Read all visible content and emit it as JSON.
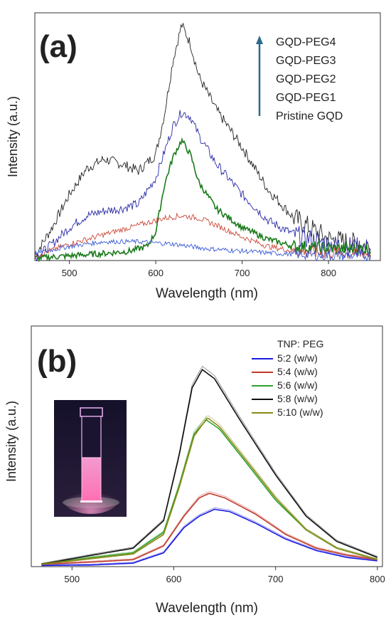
{
  "panel_a": {
    "label": "(a)",
    "legend_arrow_color": "#2b6a8a",
    "chart_data": {
      "type": "line",
      "title": "",
      "xlabel": "Wavelength (nm)",
      "ylabel": "Intensity (a.u.)",
      "xlim": [
        460,
        860
      ],
      "ylim": [
        0,
        1.05
      ],
      "xticks": [
        500,
        600,
        700,
        800
      ],
      "grid": false,
      "legend_placement": "top-right",
      "legend_entries": [
        "GQD-PEG4",
        "GQD-PEG3",
        "GQD-PEG2",
        "GQD-PEG1",
        "Pristine GQD"
      ],
      "series": [
        {
          "color": "#222222",
          "noise": 0.022,
          "x": [
            460,
            480,
            500,
            520,
            540,
            560,
            580,
            600,
            610,
            620,
            630,
            640,
            650,
            670,
            700,
            730,
            760,
            800,
            850
          ],
          "y": [
            0.02,
            0.14,
            0.28,
            0.39,
            0.43,
            0.41,
            0.38,
            0.45,
            0.62,
            0.85,
            1.0,
            0.92,
            0.78,
            0.64,
            0.48,
            0.3,
            0.18,
            0.09,
            0.06
          ]
        },
        {
          "color": "#2a2aa8",
          "noise": 0.02,
          "x": [
            460,
            480,
            500,
            520,
            540,
            560,
            580,
            600,
            610,
            620,
            630,
            640,
            650,
            670,
            700,
            730,
            760,
            800,
            850
          ],
          "y": [
            0.01,
            0.07,
            0.14,
            0.19,
            0.21,
            0.22,
            0.24,
            0.35,
            0.46,
            0.57,
            0.63,
            0.61,
            0.53,
            0.41,
            0.28,
            0.17,
            0.11,
            0.07,
            0.05
          ]
        },
        {
          "color": "#1b7a1b",
          "noise": 0.013,
          "x": [
            460,
            500,
            540,
            570,
            590,
            600,
            610,
            620,
            630,
            640,
            650,
            670,
            700,
            730,
            760,
            800,
            850
          ],
          "y": [
            0.01,
            0.02,
            0.03,
            0.04,
            0.06,
            0.12,
            0.32,
            0.44,
            0.51,
            0.45,
            0.33,
            0.22,
            0.14,
            0.09,
            0.06,
            0.05,
            0.05
          ]
        },
        {
          "color": "#cc4a3a",
          "noise": 0.012,
          "x": [
            460,
            500,
            540,
            580,
            610,
            630,
            650,
            670,
            700,
            730,
            760,
            800,
            850
          ],
          "y": [
            0.02,
            0.07,
            0.11,
            0.15,
            0.18,
            0.19,
            0.18,
            0.15,
            0.1,
            0.06,
            0.04,
            0.03,
            0.03
          ]
        },
        {
          "color": "#3a5ad8",
          "noise": 0.01,
          "x": [
            460,
            500,
            540,
            580,
            620,
            660,
            700,
            740,
            800,
            850
          ],
          "y": [
            0.03,
            0.06,
            0.08,
            0.08,
            0.07,
            0.05,
            0.04,
            0.03,
            0.02,
            0.02
          ]
        }
      ]
    }
  },
  "panel_b": {
    "label": "(b)",
    "chart_data": {
      "type": "line",
      "title": "",
      "xlabel": "Wavelength (nm)",
      "ylabel": "Intensity (a.u.)",
      "xlim": [
        460,
        805
      ],
      "ylim": [
        0,
        1.05
      ],
      "xticks": [
        500,
        600,
        700,
        800
      ],
      "grid": false,
      "legend_placement": "top-right",
      "legend_title": "TNP: PEG",
      "series": [
        {
          "name": "5:2 (w/w)",
          "color": "#1a1ae0",
          "peak": 640,
          "height": 0.25,
          "base_start": 0.005,
          "x": [
            470,
            520,
            560,
            590,
            610,
            625,
            640,
            655,
            680,
            710,
            740,
            770,
            800
          ],
          "y": [
            0.005,
            0.007,
            0.015,
            0.06,
            0.17,
            0.22,
            0.25,
            0.24,
            0.19,
            0.12,
            0.07,
            0.04,
            0.025
          ]
        },
        {
          "name": "5:4 (w/w)",
          "color": "#c0392b",
          "peak": 635,
          "height": 0.32,
          "x": [
            470,
            520,
            560,
            590,
            610,
            625,
            635,
            650,
            680,
            710,
            740,
            770,
            800
          ],
          "y": [
            0.01,
            0.02,
            0.03,
            0.09,
            0.22,
            0.3,
            0.32,
            0.3,
            0.23,
            0.14,
            0.08,
            0.05,
            0.03
          ]
        },
        {
          "name": "5:6 (w/w)",
          "color": "#2ea32e",
          "x": [
            470,
            520,
            560,
            590,
            605,
            620,
            632,
            645,
            670,
            700,
            730,
            760,
            800
          ],
          "y": [
            0.01,
            0.04,
            0.06,
            0.15,
            0.35,
            0.58,
            0.64,
            0.6,
            0.46,
            0.29,
            0.16,
            0.08,
            0.03
          ]
        },
        {
          "name": "5:8 (w/w)",
          "color": "#111111",
          "x": [
            470,
            520,
            560,
            590,
            605,
            618,
            628,
            640,
            665,
            700,
            730,
            760,
            800
          ],
          "y": [
            0.01,
            0.05,
            0.08,
            0.2,
            0.48,
            0.78,
            0.86,
            0.82,
            0.64,
            0.4,
            0.22,
            0.11,
            0.04
          ]
        },
        {
          "name": "5:10 (w/w)",
          "color": "#8a8a18",
          "x": [
            470,
            520,
            560,
            590,
            605,
            620,
            633,
            645,
            670,
            700,
            730,
            760,
            800
          ],
          "y": [
            0.01,
            0.035,
            0.055,
            0.14,
            0.34,
            0.57,
            0.65,
            0.61,
            0.47,
            0.3,
            0.16,
            0.08,
            0.03
          ]
        }
      ]
    }
  }
}
